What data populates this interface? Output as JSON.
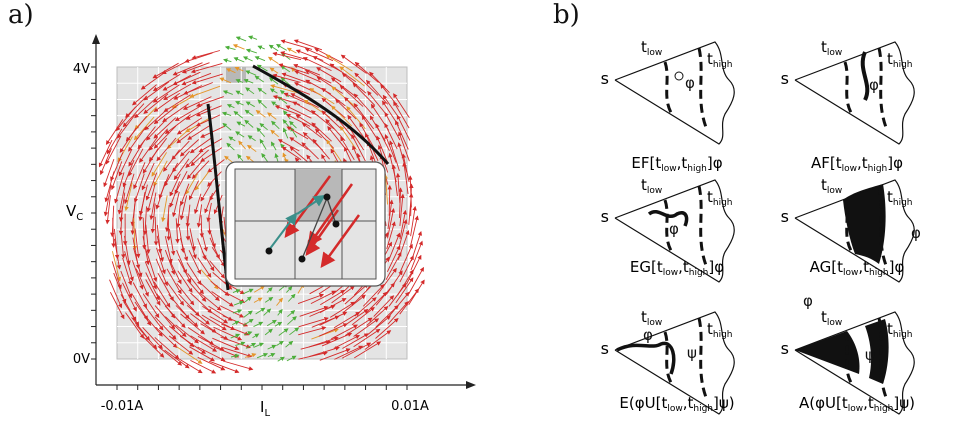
{
  "panel_a": {
    "label": "a)",
    "y_ticks": [
      "4V",
      "0V"
    ],
    "x_ticks": [
      "-0.01A",
      "0.01A"
    ],
    "y_axis_label": "V",
    "y_axis_label_sub": "C",
    "x_axis_label": "I",
    "x_axis_label_sub": "L"
  },
  "panel_b": {
    "label": "b)",
    "diagrams": [
      {
        "id": "ef",
        "start": "s",
        "t_low": "t",
        "t_low_sub": "low",
        "t_high": "t",
        "t_high_sub": "high",
        "phi": "φ",
        "caption": {
          "pre": "EF[t",
          "s1": "low",
          "mid": ",t",
          "s2": "high",
          "post": "]φ"
        }
      },
      {
        "id": "af",
        "start": "s",
        "t_low": "t",
        "t_low_sub": "low",
        "t_high": "t",
        "t_high_sub": "high",
        "phi": "φ",
        "caption": {
          "pre": "AF[t",
          "s1": "low",
          "mid": ",t",
          "s2": "high",
          "post": "]φ"
        }
      },
      {
        "id": "eg",
        "start": "s",
        "t_low": "t",
        "t_low_sub": "low",
        "t_high": "t",
        "t_high_sub": "high",
        "phi": "φ",
        "caption": {
          "pre": "EG[t",
          "s1": "low",
          "mid": ",t",
          "s2": "high",
          "post": "]φ"
        }
      },
      {
        "id": "ag",
        "start": "s",
        "t_low": "t",
        "t_low_sub": "low",
        "t_high": "t",
        "t_high_sub": "high",
        "phi": "φ",
        "caption": {
          "pre": "AG[t",
          "s1": "low",
          "mid": ",t",
          "s2": "high",
          "post": "]φ"
        }
      },
      {
        "id": "eu",
        "start": "s",
        "t_low": "t",
        "t_low_sub": "low",
        "t_high": "t",
        "t_high_sub": "high",
        "phi": "φ",
        "psi": "ψ",
        "caption": {
          "pre": "E(φU[t",
          "s1": "low",
          "mid": ",t",
          "s2": "high",
          "post": "]ψ)"
        }
      },
      {
        "id": "au",
        "start": "s",
        "t_low": "t",
        "t_low_sub": "low",
        "t_high": "t",
        "t_high_sub": "high",
        "phi": "φ",
        "psi": "ψ",
        "caption": {
          "pre": "A(φU[t",
          "s1": "low",
          "mid": ",t",
          "s2": "high",
          "post": "]ψ)"
        }
      }
    ]
  },
  "colors": {
    "grid_bg": "#e4e4e4",
    "arrow_red": "#d42a2a",
    "arrow_green": "#4cae3a",
    "arrow_orange": "#e5962a",
    "highlight_cell": "#b8b8b8"
  }
}
